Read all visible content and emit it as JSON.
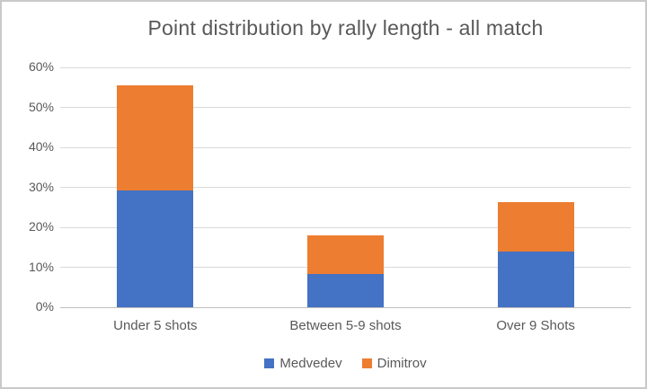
{
  "window": {
    "background_color": "#ffffff",
    "frame_border_color": "#c9c9c9"
  },
  "chart_data": {
    "type": "bar",
    "subtype": "stacked-column",
    "title": "Point distribution by rally length - all match",
    "categories": [
      "Under 5 shots",
      "Between 5-9 shots",
      "Over 9 Shots"
    ],
    "series": [
      {
        "name": "Medvedev",
        "color": "#4472C4",
        "values": [
          29.2,
          8.3,
          13.9
        ]
      },
      {
        "name": "Dimitrov",
        "color": "#ED7D31",
        "values": [
          26.4,
          9.7,
          12.5
        ]
      }
    ],
    "stack_totals": [
      55.6,
      18.0,
      26.4
    ],
    "xlabel": "",
    "ylabel": "",
    "y_axis": {
      "min": 0,
      "max": 60,
      "step": 10,
      "unit": "%",
      "tick_labels": [
        "0%",
        "10%",
        "20%",
        "30%",
        "40%",
        "50%",
        "60%"
      ]
    },
    "grid": true,
    "legend_position": "bottom",
    "text_color": "#595959",
    "gridline_color": "#d9d9d9",
    "axis_line_color": "#bfbfbf"
  }
}
